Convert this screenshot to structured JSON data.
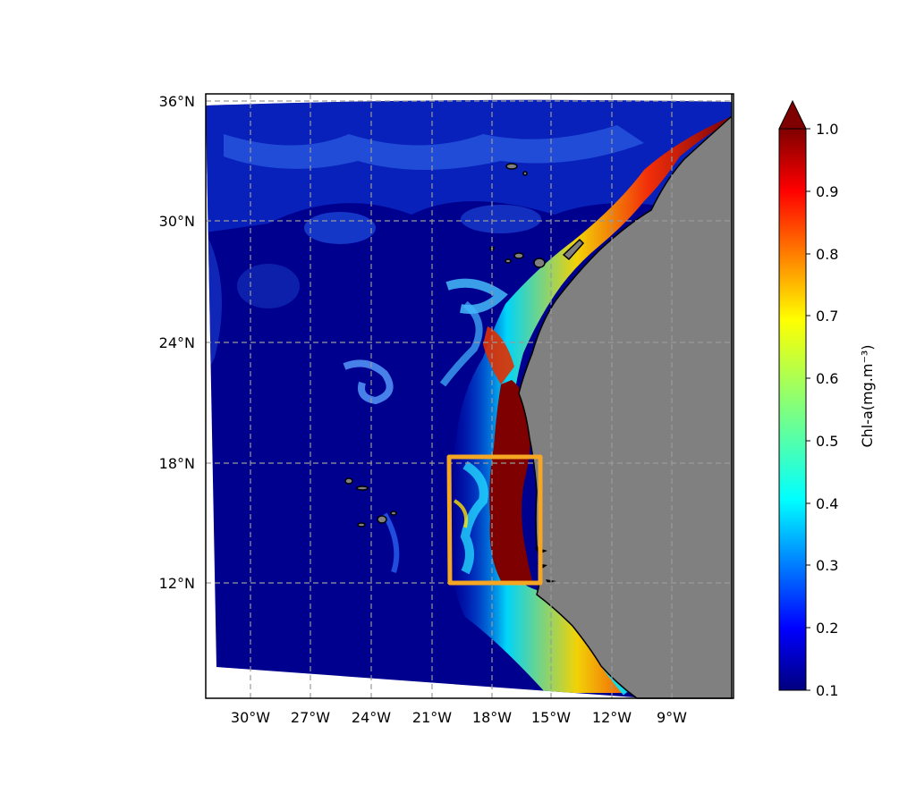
{
  "map": {
    "lat_ticks": [
      "36°N",
      "30°N",
      "24°N",
      "18°N",
      "12°N"
    ],
    "lon_ticks": [
      "30°W",
      "27°W",
      "24°W",
      "21°W",
      "18°W",
      "15°W",
      "12°W",
      "9°W"
    ],
    "land_color": "#808080",
    "ocean_base_color": "#00008f",
    "gridline_style": "dashed",
    "highlight_box": {
      "color": "#f5a623",
      "lon_range_deg": [
        -20.3,
        -15.6
      ],
      "lat_range_deg": [
        12.0,
        18.3
      ]
    }
  },
  "colorbar": {
    "label": "Chl-a(mg.m⁻³)",
    "ticks": [
      "1.0",
      "0.9",
      "0.8",
      "0.7",
      "0.6",
      "0.5",
      "0.4",
      "0.3",
      "0.2",
      "0.1"
    ],
    "colormap": "jet",
    "extend": "max",
    "range": [
      0.1,
      1.0
    ]
  }
}
